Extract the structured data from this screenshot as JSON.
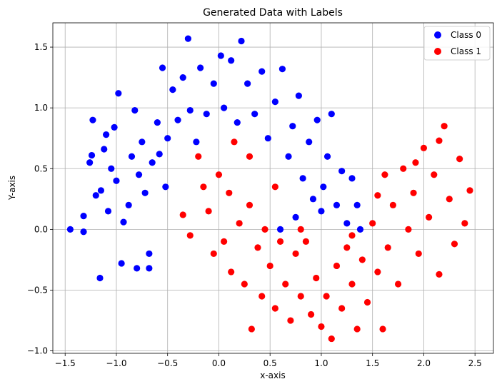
{
  "chart_data": {
    "type": "scatter",
    "title": "Generated Data with Labels",
    "xlabel": "x-axis",
    "ylabel": "Y-axis",
    "xlim": [
      -1.62,
      2.68
    ],
    "ylim": [
      -1.02,
      1.7
    ],
    "xticks": [
      -1.5,
      -1.0,
      -0.5,
      0.0,
      0.5,
      1.0,
      1.5,
      2.0,
      2.5
    ],
    "xtick_labels": [
      "−1.5",
      "−1.0",
      "−0.5",
      "0.0",
      "0.5",
      "1.0",
      "1.5",
      "2.0",
      "2.5"
    ],
    "yticks": [
      -1.0,
      -0.5,
      0.0,
      0.5,
      1.0,
      1.5
    ],
    "ytick_labels": [
      "−1.0",
      "−0.5",
      "0.0",
      "0.5",
      "1.0",
      "1.5"
    ],
    "grid": true,
    "legend_position": "top-right",
    "series": [
      {
        "name": "Class 0",
        "color": "#0000ff",
        "shape": "two interleaving moons: upper arc",
        "points": [
          [
            -1.45,
            0.0
          ],
          [
            -1.32,
            -0.02
          ],
          [
            -1.32,
            0.11
          ],
          [
            -1.26,
            0.55
          ],
          [
            -1.24,
            0.61
          ],
          [
            -1.23,
            0.9
          ],
          [
            -1.2,
            0.28
          ],
          [
            -1.16,
            -0.4
          ],
          [
            -1.15,
            0.32
          ],
          [
            -1.12,
            0.66
          ],
          [
            -1.1,
            0.78
          ],
          [
            -1.08,
            0.15
          ],
          [
            -1.05,
            0.5
          ],
          [
            -1.02,
            0.84
          ],
          [
            -1.0,
            0.4
          ],
          [
            -0.98,
            1.12
          ],
          [
            -0.95,
            -0.28
          ],
          [
            -0.93,
            0.06
          ],
          [
            -0.88,
            0.2
          ],
          [
            -0.85,
            0.6
          ],
          [
            -0.82,
            0.98
          ],
          [
            -0.8,
            -0.32
          ],
          [
            -0.78,
            0.45
          ],
          [
            -0.75,
            0.72
          ],
          [
            -0.72,
            0.3
          ],
          [
            -0.68,
            -0.32
          ],
          [
            -0.68,
            -0.2
          ],
          [
            -0.65,
            0.55
          ],
          [
            -0.6,
            0.88
          ],
          [
            -0.58,
            0.62
          ],
          [
            -0.55,
            1.33
          ],
          [
            -0.52,
            0.35
          ],
          [
            -0.5,
            0.75
          ],
          [
            -0.45,
            1.15
          ],
          [
            -0.4,
            0.9
          ],
          [
            -0.35,
            1.25
          ],
          [
            -0.3,
            1.57
          ],
          [
            -0.28,
            0.98
          ],
          [
            -0.22,
            0.72
          ],
          [
            -0.18,
            1.33
          ],
          [
            -0.12,
            0.95
          ],
          [
            -0.05,
            1.2
          ],
          [
            0.02,
            1.43
          ],
          [
            0.05,
            1.0
          ],
          [
            0.12,
            1.39
          ],
          [
            0.18,
            0.88
          ],
          [
            0.22,
            1.55
          ],
          [
            0.28,
            1.2
          ],
          [
            0.35,
            0.95
          ],
          [
            0.42,
            1.3
          ],
          [
            0.48,
            0.75
          ],
          [
            0.55,
            1.05
          ],
          [
            0.62,
            1.32
          ],
          [
            0.68,
            0.6
          ],
          [
            0.72,
            0.85
          ],
          [
            0.78,
            1.1
          ],
          [
            0.82,
            0.42
          ],
          [
            0.88,
            0.72
          ],
          [
            0.92,
            0.25
          ],
          [
            0.96,
            0.9
          ],
          [
            1.0,
            0.15
          ],
          [
            1.02,
            0.35
          ],
          [
            1.06,
            0.6
          ],
          [
            1.1,
            0.95
          ],
          [
            1.15,
            0.2
          ],
          [
            1.2,
            0.48
          ],
          [
            1.25,
            0.05
          ],
          [
            1.3,
            0.42
          ],
          [
            1.35,
            0.2
          ],
          [
            1.38,
            0.0
          ],
          [
            0.6,
            0.0
          ],
          [
            0.75,
            0.1
          ]
        ]
      },
      {
        "name": "Class 1",
        "color": "#ff0000",
        "shape": "two interleaving moons: lower arc",
        "points": [
          [
            -0.35,
            0.12
          ],
          [
            -0.28,
            -0.05
          ],
          [
            -0.2,
            0.6
          ],
          [
            -0.15,
            0.35
          ],
          [
            -0.1,
            0.15
          ],
          [
            -0.05,
            -0.2
          ],
          [
            0.0,
            0.45
          ],
          [
            0.05,
            -0.1
          ],
          [
            0.1,
            0.3
          ],
          [
            0.12,
            -0.35
          ],
          [
            0.15,
            0.72
          ],
          [
            0.2,
            0.05
          ],
          [
            0.25,
            -0.45
          ],
          [
            0.3,
            0.2
          ],
          [
            0.32,
            -0.82
          ],
          [
            0.38,
            -0.15
          ],
          [
            0.42,
            -0.55
          ],
          [
            0.45,
            0.0
          ],
          [
            0.5,
            -0.3
          ],
          [
            0.55,
            -0.65
          ],
          [
            0.6,
            -0.1
          ],
          [
            0.65,
            -0.45
          ],
          [
            0.7,
            -0.75
          ],
          [
            0.75,
            -0.2
          ],
          [
            0.8,
            -0.55
          ],
          [
            0.85,
            -0.1
          ],
          [
            0.9,
            -0.7
          ],
          [
            0.95,
            -0.4
          ],
          [
            1.0,
            -0.8
          ],
          [
            1.05,
            -0.55
          ],
          [
            1.1,
            -0.9
          ],
          [
            1.15,
            -0.3
          ],
          [
            1.2,
            -0.65
          ],
          [
            1.25,
            -0.15
          ],
          [
            1.3,
            -0.45
          ],
          [
            1.35,
            -0.82
          ],
          [
            1.4,
            -0.25
          ],
          [
            1.45,
            -0.6
          ],
          [
            1.5,
            0.05
          ],
          [
            1.55,
            -0.35
          ],
          [
            1.6,
            -0.82
          ],
          [
            1.62,
            0.45
          ],
          [
            1.65,
            -0.15
          ],
          [
            1.7,
            0.2
          ],
          [
            1.75,
            -0.45
          ],
          [
            1.8,
            0.5
          ],
          [
            1.85,
            0.0
          ],
          [
            1.9,
            0.3
          ],
          [
            1.95,
            -0.2
          ],
          [
            2.0,
            0.67
          ],
          [
            2.05,
            0.1
          ],
          [
            2.1,
            0.45
          ],
          [
            2.15,
            -0.37
          ],
          [
            2.2,
            0.85
          ],
          [
            2.25,
            0.25
          ],
          [
            2.3,
            -0.12
          ],
          [
            2.35,
            0.58
          ],
          [
            2.4,
            0.05
          ],
          [
            2.45,
            0.32
          ],
          [
            2.15,
            0.73
          ],
          [
            1.92,
            0.55
          ],
          [
            1.55,
            0.28
          ],
          [
            1.3,
            -0.05
          ],
          [
            0.8,
            0.0
          ],
          [
            0.55,
            0.35
          ],
          [
            0.3,
            0.6
          ]
        ]
      }
    ]
  }
}
